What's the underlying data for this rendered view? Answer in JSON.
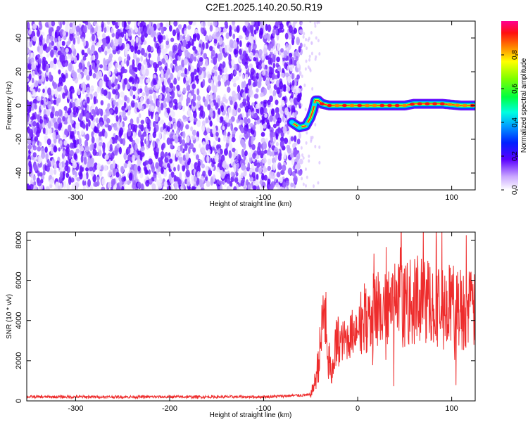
{
  "title": "C2E1.2025.140.20.50.R19",
  "chart_data": [
    {
      "type": "heatmap",
      "xlabel": "Height of straight line (km)",
      "ylabel": "Frequency (Hz)",
      "xlim": [
        -352,
        125
      ],
      "ylim": [
        -50,
        50
      ],
      "xticks": [
        -300,
        -200,
        -100,
        0,
        100
      ],
      "yticks": [
        -40,
        -20,
        0,
        20,
        40
      ],
      "colorbar": {
        "label": "Normalized spectral amplitude",
        "range": [
          0,
          1
        ],
        "ticks": [
          0.0,
          0.2,
          0.4,
          0.6,
          0.8
        ]
      },
      "noise_region_x": [
        -352,
        -60
      ],
      "signal_track": {
        "x": [
          -70,
          -62,
          -55,
          -50,
          -47,
          -45,
          -42,
          -38,
          -30,
          -20,
          0,
          30,
          50,
          60,
          70,
          90,
          110,
          125
        ],
        "frequency": [
          -10,
          -13,
          -12,
          -7,
          -2,
          3,
          3,
          1,
          0,
          0,
          0,
          0,
          0,
          1,
          1,
          1,
          0,
          0
        ]
      }
    },
    {
      "type": "line",
      "xlabel": "Height of straight line (km)",
      "ylabel": "SNR (10 * v/v)",
      "xlim": [
        -352,
        125
      ],
      "ylim": [
        0,
        8400
      ],
      "xticks": [
        -300,
        -200,
        -100,
        0,
        100
      ],
      "yticks": [
        0,
        2000,
        4000,
        6000,
        8000
      ],
      "series": [
        {
          "color": "#ee2c2c",
          "x": [
            -352,
            -300,
            -200,
            -100,
            -50,
            -45,
            -40,
            -35,
            -32,
            -30,
            -28,
            -26,
            -24,
            -20,
            -10,
            0,
            10,
            20,
            30,
            40,
            50,
            60,
            70,
            80,
            90,
            100,
            110,
            120,
            125
          ],
          "y": [
            200,
            200,
            200,
            200,
            300,
            1000,
            2500,
            5000,
            1500,
            2200,
            800,
            2000,
            2600,
            2900,
            3100,
            3800,
            4200,
            4500,
            4700,
            4800,
            4800,
            4900,
            5000,
            5000,
            4600,
            4800,
            4600,
            4500,
            4600
          ]
        }
      ]
    }
  ]
}
